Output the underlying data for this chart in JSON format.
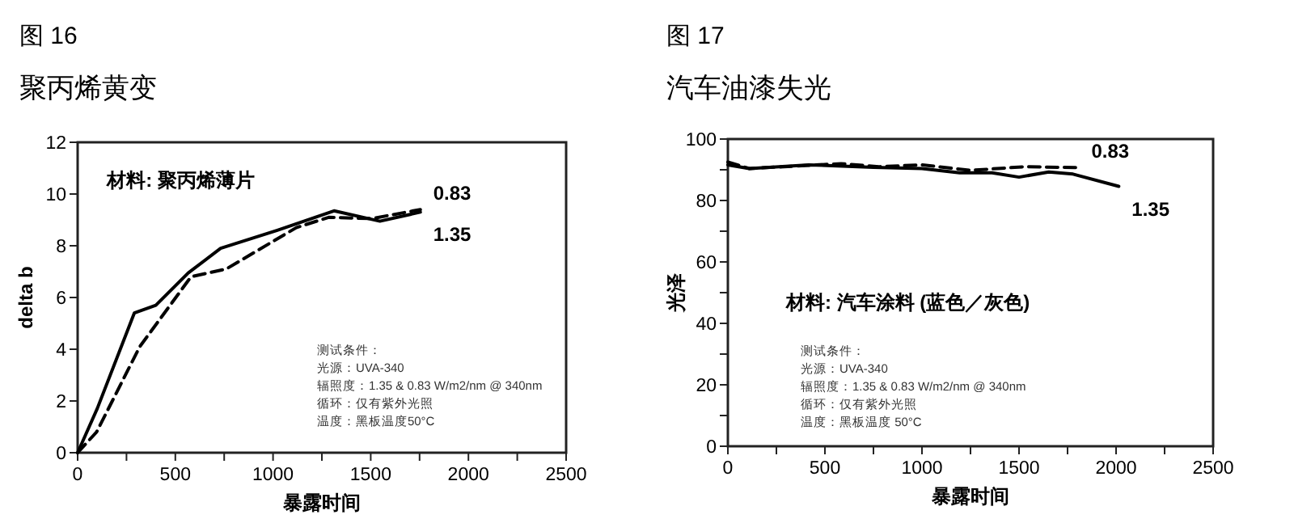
{
  "chart_data": [
    {
      "type": "line",
      "title": "图 16",
      "subtitle": "聚丙烯黄变",
      "xlabel": "暴露时间",
      "ylabel": "delta b",
      "xlim": [
        0,
        2500
      ],
      "ylim": [
        0,
        12
      ],
      "xticks": [
        0,
        {
          "value": 250,
          "label": null
        },
        500,
        {
          "value": 750,
          "label": null
        },
        1000,
        {
          "value": 1250,
          "label": null
        },
        1500,
        {
          "value": 1750,
          "label": null
        },
        2000,
        {
          "value": 2250,
          "label": null
        },
        2500
      ],
      "yticks": [
        0,
        2,
        4,
        6,
        8,
        10,
        12
      ],
      "annotations": [
        "材料: 聚丙烯薄片",
        "测试条件：",
        "光源：UVA-340",
        "辐照度：1.35 & 0.83 W/m2/nm @ 340nm",
        "循环：仅有紫外光照",
        "温度：黑板温度50°C"
      ],
      "series": [
        {
          "name": "0.83",
          "color": "#000000",
          "line_style": "dashed",
          "x": [
            0,
            97,
            318,
            580,
            760,
            1119,
            1285,
            1506,
            1754
          ],
          "values": [
            0,
            0.8,
            4.1,
            6.8,
            7.1,
            8.7,
            9.1,
            9.05,
            9.4
          ]
        },
        {
          "name": "1.35",
          "color": "#000000",
          "line_style": "solid",
          "x": [
            0,
            100,
            290,
            400,
            566,
            732,
            1022,
            1312,
            1547,
            1754
          ],
          "values": [
            0,
            1.7,
            5.4,
            5.7,
            6.95,
            7.9,
            8.6,
            9.35,
            8.95,
            9.3
          ]
        }
      ]
    },
    {
      "type": "line",
      "title": "图 17",
      "subtitle": "汽车油漆失光",
      "xlabel": "暴露时间",
      "ylabel": "光泽",
      "xlim": [
        0,
        2500
      ],
      "ylim": [
        0,
        100
      ],
      "xticks": [
        0,
        {
          "value": 250,
          "label": null
        },
        500,
        {
          "value": 750,
          "label": null
        },
        1000,
        {
          "value": 1250,
          "label": null
        },
        1500,
        {
          "value": 1750,
          "label": null
        },
        2000,
        {
          "value": 2250,
          "label": null
        },
        2500
      ],
      "yticks": [
        0,
        {
          "value": 10,
          "label": null
        },
        20,
        {
          "value": 30,
          "label": null
        },
        40,
        {
          "value": 50,
          "label": null
        },
        60,
        {
          "value": 70,
          "label": null
        },
        80,
        {
          "value": 90,
          "label": null
        },
        100
      ],
      "annotations": [
        "材料: 汽车涂料 (蓝色／灰色)",
        "测试条件：",
        "光源：UVA-340",
        "辐照度：1.35 & 0.83 W/m2/nm @ 340nm",
        "循环：仅有紫外光照",
        "温度：黑板温度 50°C"
      ],
      "series": [
        {
          "name": "0.83",
          "color": "#000000",
          "line_style": "dashed",
          "x": [
            0,
            111,
            583,
            778,
            1000,
            1250,
            1528,
            1806
          ],
          "values": [
            92.5,
            90.4,
            92,
            91,
            91.6,
            89.8,
            91,
            90.7
          ]
        },
        {
          "name": "1.35",
          "color": "#000000",
          "line_style": "solid",
          "x": [
            0,
            111,
            417,
            750,
            1000,
            1194,
            1361,
            1500,
            1653,
            1778,
            2014
          ],
          "values": [
            91.6,
            90.4,
            91.6,
            90.8,
            90.4,
            89,
            89,
            87.6,
            89.3,
            88.6,
            84.6
          ]
        }
      ]
    }
  ]
}
